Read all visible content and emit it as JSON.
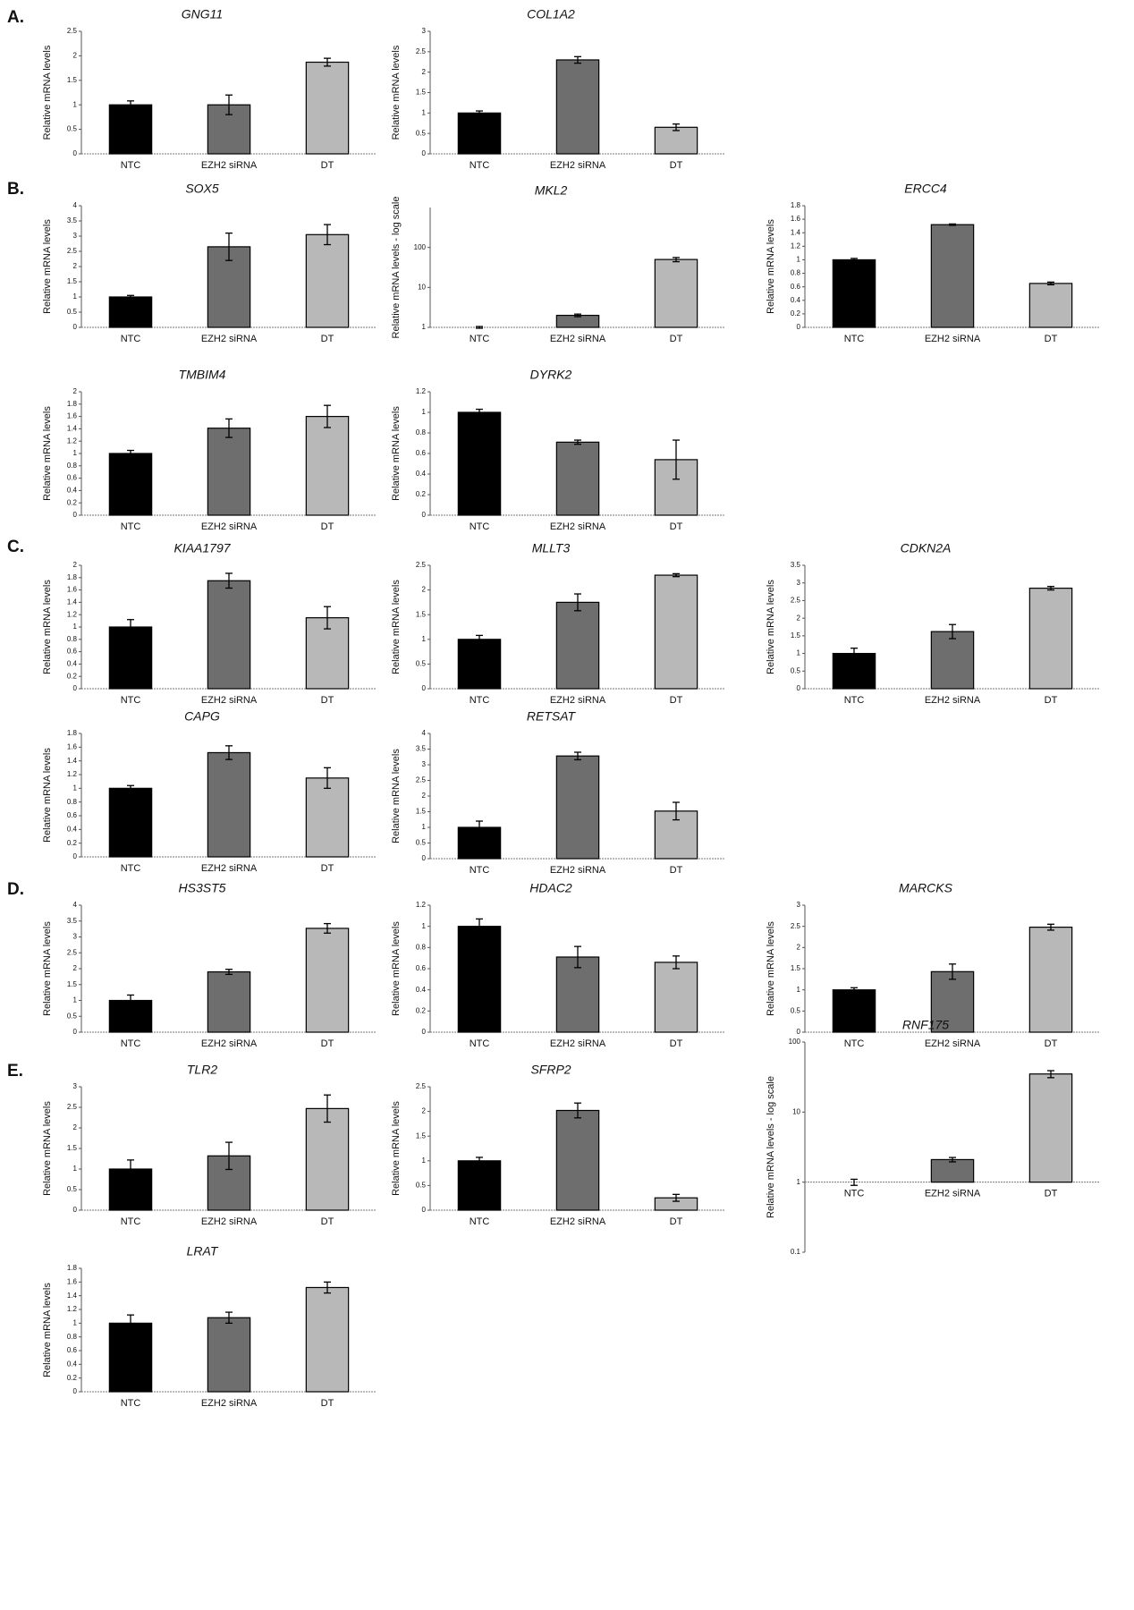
{
  "panel_labels": [
    "A.",
    "B.",
    "C.",
    "D.",
    "E."
  ],
  "chart_data": [
    {
      "type": "bar",
      "title": "GNG11",
      "ylabel": "Relative mRNA levels",
      "categories": [
        "NTC",
        "EZH2 siRNA",
        "DT"
      ],
      "values": [
        1,
        1,
        1.87
      ],
      "errors": [
        0.08,
        0.2,
        0.08
      ],
      "colors": [
        "#000000",
        "#6e6e6e",
        "#b8b8b8"
      ],
      "ylim": [
        0,
        2.5
      ],
      "yticks": [
        0,
        0.5,
        1,
        1.5,
        2,
        2.5
      ]
    },
    {
      "type": "bar",
      "title": "COL1A2",
      "ylabel": "Relative mRNA levels",
      "categories": [
        "NTC",
        "EZH2 siRNA",
        "DT"
      ],
      "values": [
        1,
        2.3,
        0.65
      ],
      "errors": [
        0.05,
        0.08,
        0.08
      ],
      "colors": [
        "#000000",
        "#6e6e6e",
        "#b8b8b8"
      ],
      "ylim": [
        0,
        3
      ],
      "yticks": [
        0,
        0.5,
        1,
        1.5,
        2,
        2.5,
        3
      ]
    },
    {
      "type": "bar",
      "title": "SOX5",
      "ylabel": "Relative mRNA levels",
      "categories": [
        "NTC",
        "EZH2 siRNA",
        "DT"
      ],
      "values": [
        1,
        2.65,
        3.05
      ],
      "errors": [
        0.05,
        0.45,
        0.33
      ],
      "colors": [
        "#000000",
        "#6e6e6e",
        "#b8b8b8"
      ],
      "ylim": [
        0,
        4
      ],
      "yticks": [
        0,
        0.5,
        1,
        1.5,
        2,
        2.5,
        3,
        3.5,
        4
      ]
    },
    {
      "type": "bar",
      "title": "MKL2",
      "ylabel": "Relative mRNA levels - log scale",
      "categories": [
        "NTC",
        "EZH2 siRNA",
        "DT"
      ],
      "values": [
        1,
        2,
        50
      ],
      "errors": [
        0.05,
        0.15,
        6
      ],
      "colors": [
        "#000000",
        "#6e6e6e",
        "#b8b8b8"
      ],
      "ylim": [
        1,
        1000
      ],
      "yticks": [
        1,
        10,
        100
      ],
      "log": true
    },
    {
      "type": "bar",
      "title": "ERCC4",
      "ylabel": "Relative mRNA levels",
      "categories": [
        "NTC",
        "EZH2 siRNA",
        "DT"
      ],
      "values": [
        1,
        1.52,
        0.65
      ],
      "errors": [
        0.02,
        0.01,
        0.02
      ],
      "colors": [
        "#000000",
        "#6e6e6e",
        "#b8b8b8"
      ],
      "ylim": [
        0,
        1.8
      ],
      "yticks": [
        0,
        0.2,
        0.4,
        0.6,
        0.8,
        1,
        1.2,
        1.4,
        1.6,
        1.8
      ]
    },
    {
      "type": "bar",
      "title": "TMBIM4",
      "ylabel": "Relative mRNA levels",
      "categories": [
        "NTC",
        "EZH2 siRNA",
        "DT"
      ],
      "values": [
        1,
        1.41,
        1.6
      ],
      "errors": [
        0.05,
        0.15,
        0.18
      ],
      "colors": [
        "#000000",
        "#6e6e6e",
        "#b8b8b8"
      ],
      "ylim": [
        0,
        2
      ],
      "yticks": [
        0,
        0.2,
        0.4,
        0.6,
        0.8,
        1,
        1.2,
        1.4,
        1.6,
        1.8,
        2
      ]
    },
    {
      "type": "bar",
      "title": "DYRK2",
      "ylabel": "Relative mRNA levels",
      "categories": [
        "NTC",
        "EZH2 siRNA",
        "DT"
      ],
      "values": [
        1,
        0.71,
        0.54
      ],
      "errors": [
        0.03,
        0.02,
        0.19
      ],
      "colors": [
        "#000000",
        "#6e6e6e",
        "#b8b8b8"
      ],
      "ylim": [
        0,
        1.2
      ],
      "yticks": [
        0,
        0.2,
        0.4,
        0.6,
        0.8,
        1,
        1.2
      ]
    },
    {
      "type": "bar",
      "title": "KIAA1797",
      "ylabel": "Relative mRNA levels",
      "categories": [
        "NTC",
        "EZH2 siRNA",
        "DT"
      ],
      "values": [
        1,
        1.75,
        1.15
      ],
      "errors": [
        0.12,
        0.12,
        0.18
      ],
      "colors": [
        "#000000",
        "#6e6e6e",
        "#b8b8b8"
      ],
      "ylim": [
        0,
        2
      ],
      "yticks": [
        0,
        0.2,
        0.4,
        0.6,
        0.8,
        1,
        1.2,
        1.4,
        1.6,
        1.8,
        2
      ]
    },
    {
      "type": "bar",
      "title": "MLLT3",
      "ylabel": "Relative mRNA levels",
      "categories": [
        "NTC",
        "EZH2 siRNA",
        "DT"
      ],
      "values": [
        1,
        1.75,
        2.3
      ],
      "errors": [
        0.08,
        0.17,
        0.03
      ],
      "colors": [
        "#000000",
        "#6e6e6e",
        "#b8b8b8"
      ],
      "ylim": [
        0,
        2.5
      ],
      "yticks": [
        0,
        0.5,
        1,
        1.5,
        2,
        2.5
      ]
    },
    {
      "type": "bar",
      "title": "CDKN2A",
      "ylabel": "Relative mRNA levels",
      "categories": [
        "NTC",
        "EZH2 siRNA",
        "DT"
      ],
      "values": [
        1,
        1.62,
        2.85
      ],
      "errors": [
        0.15,
        0.2,
        0.05
      ],
      "colors": [
        "#000000",
        "#6e6e6e",
        "#b8b8b8"
      ],
      "ylim": [
        0,
        3.5
      ],
      "yticks": [
        0,
        0.5,
        1,
        1.5,
        2,
        2.5,
        3,
        3.5
      ]
    },
    {
      "type": "bar",
      "title": "CAPG",
      "ylabel": "Relative mRNA levels",
      "categories": [
        "NTC",
        "EZH2 siRNA",
        "DT"
      ],
      "values": [
        1,
        1.52,
        1.15
      ],
      "errors": [
        0.04,
        0.1,
        0.15
      ],
      "colors": [
        "#000000",
        "#6e6e6e",
        "#b8b8b8"
      ],
      "ylim": [
        0,
        1.8
      ],
      "yticks": [
        0,
        0.2,
        0.4,
        0.6,
        0.8,
        1,
        1.2,
        1.4,
        1.6,
        1.8
      ]
    },
    {
      "type": "bar",
      "title": "RETSAT",
      "ylabel": "Relative mRNA levels",
      "categories": [
        "NTC",
        "EZH2 siRNA",
        "DT"
      ],
      "values": [
        1,
        3.28,
        1.52
      ],
      "errors": [
        0.2,
        0.12,
        0.28
      ],
      "colors": [
        "#000000",
        "#6e6e6e",
        "#b8b8b8"
      ],
      "ylim": [
        0,
        4
      ],
      "yticks": [
        0,
        0.5,
        1,
        1.5,
        2,
        2.5,
        3,
        3.5,
        4
      ]
    },
    {
      "type": "bar",
      "title": "HS3ST5",
      "ylabel": "Relative mRNA levels",
      "categories": [
        "NTC",
        "EZH2 siRNA",
        "DT"
      ],
      "values": [
        1,
        1.9,
        3.27
      ],
      "errors": [
        0.17,
        0.08,
        0.15
      ],
      "colors": [
        "#000000",
        "#6e6e6e",
        "#b8b8b8"
      ],
      "ylim": [
        0,
        4
      ],
      "yticks": [
        0,
        0.5,
        1,
        1.5,
        2,
        2.5,
        3,
        3.5,
        4
      ]
    },
    {
      "type": "bar",
      "title": "HDAC2",
      "ylabel": "Relative mRNA levels",
      "categories": [
        "NTC",
        "EZH2 siRNA",
        "DT"
      ],
      "values": [
        1,
        0.71,
        0.66
      ],
      "errors": [
        0.07,
        0.1,
        0.06
      ],
      "colors": [
        "#000000",
        "#6e6e6e",
        "#b8b8b8"
      ],
      "ylim": [
        0,
        1.2
      ],
      "yticks": [
        0,
        0.2,
        0.4,
        0.6,
        0.8,
        1,
        1.2
      ]
    },
    {
      "type": "bar",
      "title": "MARCKS",
      "ylabel": "Relative mRNA levels",
      "categories": [
        "NTC",
        "EZH2 siRNA",
        "DT"
      ],
      "values": [
        1,
        1.43,
        2.48
      ],
      "errors": [
        0.05,
        0.18,
        0.07
      ],
      "colors": [
        "#000000",
        "#6e6e6e",
        "#b8b8b8"
      ],
      "ylim": [
        0,
        3
      ],
      "yticks": [
        0,
        0.5,
        1,
        1.5,
        2,
        2.5,
        3
      ]
    },
    {
      "type": "bar",
      "title": "TLR2",
      "ylabel": "Relative mRNA levels",
      "categories": [
        "NTC",
        "EZH2 siRNA",
        "DT"
      ],
      "values": [
        1,
        1.32,
        2.47
      ],
      "errors": [
        0.22,
        0.33,
        0.33
      ],
      "colors": [
        "#000000",
        "#6e6e6e",
        "#b8b8b8"
      ],
      "ylim": [
        0,
        3
      ],
      "yticks": [
        0,
        0.5,
        1,
        1.5,
        2,
        2.5,
        3
      ]
    },
    {
      "type": "bar",
      "title": "SFRP2",
      "ylabel": "Relative mRNA levels",
      "categories": [
        "NTC",
        "EZH2 siRNA",
        "DT"
      ],
      "values": [
        1,
        2.02,
        0.25
      ],
      "errors": [
        0.07,
        0.15,
        0.07
      ],
      "colors": [
        "#000000",
        "#6e6e6e",
        "#b8b8b8"
      ],
      "ylim": [
        0,
        2.5
      ],
      "yticks": [
        0,
        0.5,
        1,
        1.5,
        2,
        2.5
      ]
    },
    {
      "type": "bar",
      "title": "RNF175",
      "ylabel": "Relative mRNA levels - log scale",
      "categories": [
        "NTC",
        "EZH2 siRNA",
        "DT"
      ],
      "values": [
        1,
        2.1,
        35
      ],
      "errors": [
        0.1,
        0.15,
        4
      ],
      "colors": [
        "#000000",
        "#6e6e6e",
        "#b8b8b8"
      ],
      "ylim": [
        0.1,
        100
      ],
      "yticks": [
        0.1,
        1,
        10,
        100
      ],
      "log": true
    },
    {
      "type": "bar",
      "title": "LRAT",
      "ylabel": "Relative mRNA levels",
      "categories": [
        "NTC",
        "EZH2 siRNA",
        "DT"
      ],
      "values": [
        1,
        1.08,
        1.52
      ],
      "errors": [
        0.12,
        0.08,
        0.08
      ],
      "colors": [
        "#000000",
        "#6e6e6e",
        "#b8b8b8"
      ],
      "ylim": [
        0,
        1.8
      ],
      "yticks": [
        0,
        0.2,
        0.4,
        0.6,
        0.8,
        1,
        1.2,
        1.4,
        1.6,
        1.8
      ]
    }
  ]
}
